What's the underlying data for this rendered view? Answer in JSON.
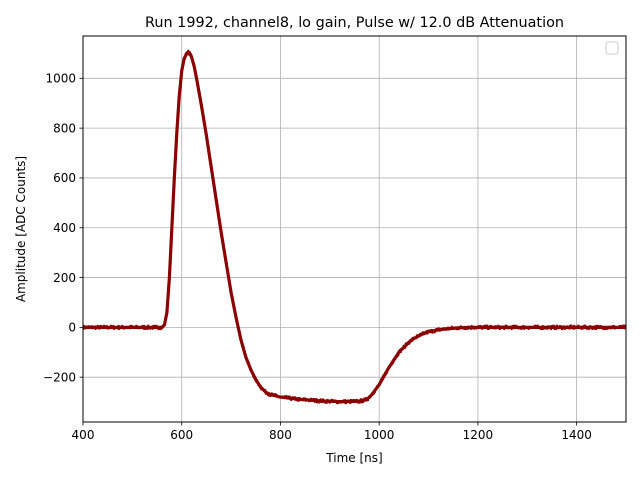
{
  "chart_data": {
    "type": "scatter",
    "title": "Run 1992, channel8, lo gain, Pulse w/ 12.0 dB Attenuation",
    "xlabel": "Time [ns]",
    "ylabel": "Amplitude [ADC Counts]",
    "xlim": [
      400,
      1500
    ],
    "ylim": [
      -380,
      1170
    ],
    "xticks": [
      400,
      600,
      800,
      1000,
      1200,
      1400
    ],
    "yticks": [
      -200,
      0,
      200,
      400,
      600,
      800,
      1000
    ],
    "xtick_labels": [
      "400",
      "600",
      "800",
      "1000",
      "1200",
      "1400"
    ],
    "ytick_labels": [
      "−200",
      "0",
      "200",
      "400",
      "600",
      "800",
      "1000"
    ],
    "grid": true,
    "legend": {
      "location": "top-right",
      "entries": []
    },
    "series": [
      {
        "color": "#8b0000",
        "marker": "point",
        "x": [
          400,
          450,
          500,
          550,
          560,
          565,
          570,
          575,
          580,
          585,
          590,
          595,
          600,
          605,
          610,
          613,
          616,
          620,
          625,
          630,
          640,
          650,
          660,
          670,
          680,
          690,
          700,
          710,
          720,
          730,
          740,
          750,
          760,
          770,
          780,
          800,
          820,
          840,
          860,
          880,
          900,
          920,
          940,
          960,
          975,
          985,
          1000,
          1010,
          1020,
          1030,
          1040,
          1050,
          1060,
          1070,
          1080,
          1090,
          1100,
          1120,
          1140,
          1160,
          1180,
          1200,
          1250,
          1300,
          1350,
          1400,
          1450,
          1500
        ],
        "y": [
          0,
          0,
          0,
          0,
          0,
          10,
          60,
          200,
          400,
          600,
          780,
          930,
          1030,
          1080,
          1100,
          1105,
          1100,
          1085,
          1050,
          1000,
          890,
          770,
          640,
          510,
          380,
          260,
          140,
          40,
          -50,
          -120,
          -170,
          -210,
          -240,
          -260,
          -270,
          -280,
          -285,
          -290,
          -292,
          -295,
          -297,
          -298,
          -298,
          -297,
          -290,
          -270,
          -230,
          -195,
          -160,
          -130,
          -100,
          -80,
          -60,
          -45,
          -35,
          -25,
          -18,
          -10,
          -5,
          -2,
          0,
          0,
          0,
          0,
          0,
          0,
          0,
          0
        ]
      }
    ]
  }
}
